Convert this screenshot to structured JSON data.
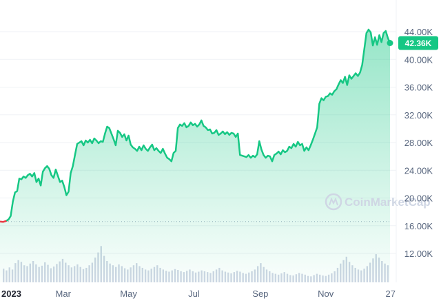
{
  "chart_data": {
    "type": "area",
    "title": "",
    "xlabel": "",
    "ylabel": "",
    "ylim": [
      8000,
      45500
    ],
    "y_ticks": [
      "44.00K",
      "40.00K",
      "36.00K",
      "32.00K",
      "28.00K",
      "24.00K",
      "20.00K",
      "16.00K",
      "12.00K"
    ],
    "y_tick_values": [
      44000,
      40000,
      36000,
      32000,
      28000,
      24000,
      20000,
      16000,
      12000
    ],
    "x_ticks": [
      "2023",
      "Mar",
      "May",
      "Jul",
      "Sep",
      "Nov",
      "27"
    ],
    "x_tick_days": [
      0,
      59,
      120,
      181,
      243,
      304,
      360
    ],
    "x_range_days": [
      0,
      364
    ],
    "open_price": 16600,
    "current_price": 42360,
    "current_price_label": "42.36K",
    "colors": {
      "up": "#16c784",
      "down": "#ea3943",
      "fill_top": "#16c784",
      "volume": "#cfd6e4",
      "grid": "#eff2f5"
    },
    "grid": true,
    "series": [
      {
        "points": [
          [
            0,
            16600
          ],
          [
            3,
            16550
          ],
          [
            6,
            16700
          ],
          [
            8,
            16900
          ],
          [
            10,
            17400
          ],
          [
            12,
            19500
          ],
          [
            14,
            20800
          ],
          [
            16,
            21000
          ],
          [
            18,
            22800
          ],
          [
            20,
            22700
          ],
          [
            22,
            23100
          ],
          [
            24,
            22900
          ],
          [
            26,
            23300
          ],
          [
            28,
            23500
          ],
          [
            30,
            23100
          ],
          [
            32,
            23600
          ],
          [
            34,
            22300
          ],
          [
            36,
            22800
          ],
          [
            38,
            21800
          ],
          [
            40,
            23800
          ],
          [
            42,
            24300
          ],
          [
            44,
            24600
          ],
          [
            46,
            24200
          ],
          [
            48,
            23300
          ],
          [
            50,
            22900
          ],
          [
            52,
            24100
          ],
          [
            54,
            23200
          ],
          [
            56,
            22300
          ],
          [
            58,
            22500
          ],
          [
            60,
            21600
          ],
          [
            62,
            20400
          ],
          [
            64,
            20900
          ],
          [
            66,
            23600
          ],
          [
            68,
            24600
          ],
          [
            70,
            26200
          ],
          [
            72,
            27800
          ],
          [
            74,
            28000
          ],
          [
            76,
            28200
          ],
          [
            78,
            27600
          ],
          [
            80,
            28300
          ],
          [
            82,
            28000
          ],
          [
            84,
            28400
          ],
          [
            86,
            27900
          ],
          [
            88,
            28600
          ],
          [
            90,
            28300
          ],
          [
            92,
            27900
          ],
          [
            94,
            28200
          ],
          [
            96,
            28100
          ],
          [
            98,
            29300
          ],
          [
            100,
            30300
          ],
          [
            102,
            30100
          ],
          [
            104,
            29300
          ],
          [
            106,
            28500
          ],
          [
            108,
            27600
          ],
          [
            110,
            29700
          ],
          [
            112,
            29400
          ],
          [
            114,
            28800
          ],
          [
            116,
            29200
          ],
          [
            118,
            28300
          ],
          [
            120,
            29000
          ],
          [
            122,
            27700
          ],
          [
            124,
            27300
          ],
          [
            126,
            27100
          ],
          [
            128,
            26800
          ],
          [
            130,
            27400
          ],
          [
            132,
            26900
          ],
          [
            134,
            27600
          ],
          [
            136,
            27100
          ],
          [
            138,
            26800
          ],
          [
            140,
            27300
          ],
          [
            142,
            27700
          ],
          [
            144,
            26900
          ],
          [
            146,
            27200
          ],
          [
            148,
            26800
          ],
          [
            150,
            26500
          ],
          [
            152,
            27100
          ],
          [
            154,
            26400
          ],
          [
            156,
            25800
          ],
          [
            158,
            25600
          ],
          [
            160,
            25300
          ],
          [
            162,
            26500
          ],
          [
            164,
            26800
          ],
          [
            166,
            30100
          ],
          [
            168,
            30600
          ],
          [
            170,
            30400
          ],
          [
            172,
            30800
          ],
          [
            174,
            30200
          ],
          [
            176,
            30400
          ],
          [
            178,
            30900
          ],
          [
            180,
            30500
          ],
          [
            182,
            30700
          ],
          [
            184,
            30300
          ],
          [
            186,
            30600
          ],
          [
            188,
            31200
          ],
          [
            190,
            30400
          ],
          [
            192,
            30200
          ],
          [
            194,
            29800
          ],
          [
            196,
            29900
          ],
          [
            198,
            29300
          ],
          [
            200,
            29400
          ],
          [
            202,
            29800
          ],
          [
            204,
            29100
          ],
          [
            206,
            29300
          ],
          [
            208,
            29600
          ],
          [
            210,
            29200
          ],
          [
            212,
            29500
          ],
          [
            214,
            29100
          ],
          [
            216,
            29400
          ],
          [
            218,
            29300
          ],
          [
            220,
            28800
          ],
          [
            222,
            29300
          ],
          [
            224,
            26200
          ],
          [
            226,
            26100
          ],
          [
            228,
            26000
          ],
          [
            230,
            25900
          ],
          [
            232,
            26200
          ],
          [
            234,
            25800
          ],
          [
            236,
            26100
          ],
          [
            238,
            25900
          ],
          [
            240,
            26300
          ],
          [
            242,
            28200
          ],
          [
            244,
            27000
          ],
          [
            246,
            26200
          ],
          [
            248,
            25800
          ],
          [
            250,
            26100
          ],
          [
            252,
            26000
          ],
          [
            254,
            25300
          ],
          [
            256,
            26200
          ],
          [
            258,
            26400
          ],
          [
            260,
            26700
          ],
          [
            262,
            26300
          ],
          [
            264,
            26900
          ],
          [
            266,
            26600
          ],
          [
            268,
            26800
          ],
          [
            270,
            27400
          ],
          [
            272,
            27200
          ],
          [
            274,
            27800
          ],
          [
            276,
            27400
          ],
          [
            278,
            28100
          ],
          [
            280,
            27600
          ],
          [
            282,
            27800
          ],
          [
            284,
            26800
          ],
          [
            286,
            27300
          ],
          [
            288,
            26900
          ],
          [
            290,
            27600
          ],
          [
            292,
            28400
          ],
          [
            294,
            29300
          ],
          [
            296,
            30200
          ],
          [
            298,
            33600
          ],
          [
            300,
            34400
          ],
          [
            302,
            34100
          ],
          [
            304,
            34600
          ],
          [
            306,
            34700
          ],
          [
            308,
            35100
          ],
          [
            310,
            34900
          ],
          [
            312,
            35400
          ],
          [
            314,
            35700
          ],
          [
            316,
            36400
          ],
          [
            318,
            37000
          ],
          [
            320,
            36600
          ],
          [
            322,
            37500
          ],
          [
            324,
            36300
          ],
          [
            326,
            37700
          ],
          [
            328,
            37200
          ],
          [
            330,
            37600
          ],
          [
            332,
            38000
          ],
          [
            334,
            37600
          ],
          [
            336,
            38100
          ],
          [
            338,
            39200
          ],
          [
            340,
            41500
          ],
          [
            342,
            43800
          ],
          [
            344,
            44300
          ],
          [
            346,
            43900
          ],
          [
            348,
            42000
          ],
          [
            350,
            43200
          ],
          [
            352,
            42100
          ],
          [
            354,
            43500
          ],
          [
            356,
            42500
          ],
          [
            358,
            43800
          ],
          [
            360,
            44100
          ],
          [
            362,
            43100
          ],
          [
            364,
            42360
          ]
        ]
      }
    ],
    "volume": [
      0.32,
      0.28,
      0.35,
      0.3,
      0.45,
      0.52,
      0.48,
      0.4,
      0.38,
      0.44,
      0.5,
      0.42,
      0.36,
      0.39,
      0.47,
      0.41,
      0.33,
      0.37,
      0.43,
      0.49,
      0.55,
      0.46,
      0.4,
      0.35,
      0.38,
      0.42,
      0.36,
      0.31,
      0.34,
      0.4,
      0.46,
      0.58,
      0.7,
      0.85,
      0.62,
      0.5,
      0.44,
      0.4,
      0.36,
      0.42,
      0.38,
      0.33,
      0.3,
      0.35,
      0.4,
      0.45,
      0.38,
      0.34,
      0.3,
      0.28,
      0.32,
      0.36,
      0.4,
      0.34,
      0.3,
      0.27,
      0.25,
      0.28,
      0.31,
      0.29,
      0.26,
      0.24,
      0.27,
      0.3,
      0.26,
      0.23,
      0.25,
      0.28,
      0.26,
      0.24,
      0.22,
      0.26,
      0.3,
      0.34,
      0.28,
      0.25,
      0.23,
      0.21,
      0.24,
      0.27,
      0.25,
      0.22,
      0.2,
      0.23,
      0.26,
      0.3,
      0.38,
      0.45,
      0.36,
      0.3,
      0.26,
      0.22,
      0.2,
      0.18,
      0.21,
      0.24,
      0.2,
      0.17,
      0.16,
      0.19,
      0.22,
      0.2,
      0.18,
      0.15,
      0.14,
      0.17,
      0.2,
      0.18,
      0.16,
      0.15,
      0.18,
      0.21,
      0.26,
      0.34,
      0.44,
      0.52,
      0.6,
      0.48,
      0.4,
      0.34,
      0.3,
      0.28,
      0.32,
      0.38,
      0.46,
      0.56,
      0.66,
      0.58,
      0.5,
      0.44,
      0.4
    ]
  },
  "watermark": {
    "text": "CoinMarketCap"
  }
}
